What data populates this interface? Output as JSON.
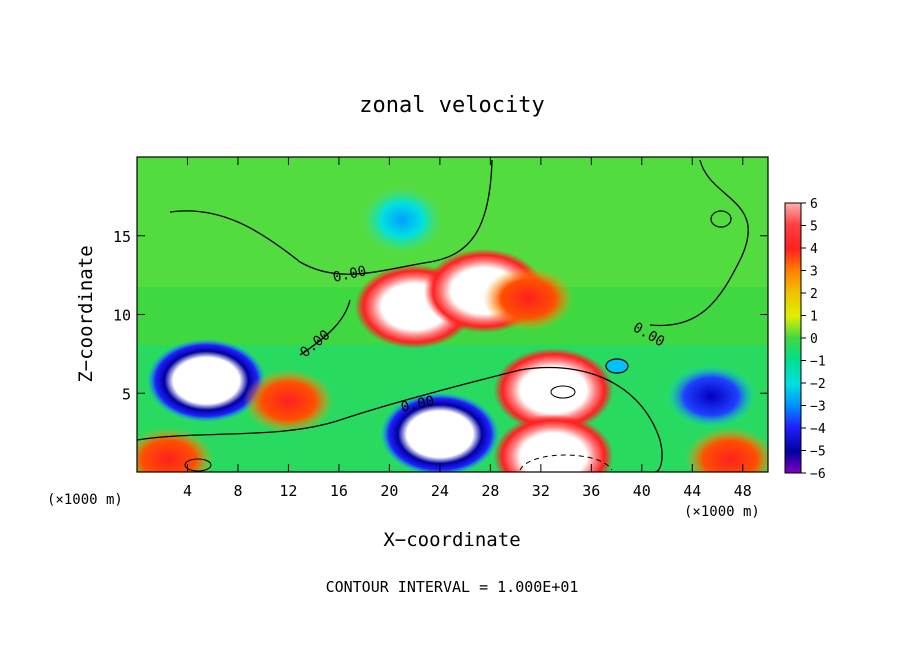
{
  "chart_data": {
    "type": "heatmap",
    "title": "zonal velocity",
    "xlabel": "X−coordinate",
    "ylabel": "Z−coordinate",
    "x_units": "(×1000 m)",
    "z_units": "(×1000 m)",
    "xlim": [
      0,
      50
    ],
    "ylim": [
      0,
      20
    ],
    "x_ticks": [
      4,
      8,
      12,
      16,
      20,
      24,
      28,
      32,
      36,
      40,
      44,
      48
    ],
    "y_ticks": [
      5,
      10,
      15
    ],
    "colorbar": {
      "ticks": [
        6,
        5,
        4,
        3,
        2,
        1,
        0,
        -1,
        -2,
        -3,
        -4,
        -5,
        -6
      ],
      "tick_labels": [
        "6",
        "5",
        "4",
        "3",
        "2",
        "1",
        "0",
        "−1",
        "−2",
        "−3",
        "−4",
        "−5",
        "−6"
      ],
      "range": [
        -6,
        6
      ]
    },
    "contour_labels": [
      "0.00",
      "0.00",
      "0.00",
      "0.00"
    ],
    "footnote": "CONTOUR INTERVAL = 1.000E+01",
    "colors": {
      "background_field": "#40d840",
      "strong_positive": "#ffffff",
      "positive": "#ff2a2a",
      "negative": "#1a1aff",
      "weak_negative": "#00d8ff",
      "contour": "#000000"
    },
    "features": [
      {
        "kind": "positive",
        "x": 22,
        "z": 10.5,
        "value": 6.5
      },
      {
        "kind": "positive",
        "x": 27.5,
        "z": 11.5,
        "value": 6.5
      },
      {
        "kind": "positive",
        "x": 33,
        "z": 5.2,
        "value": 6.5
      },
      {
        "kind": "positive",
        "x": 31,
        "z": 11,
        "value": 4
      },
      {
        "kind": "negative",
        "x": 5.5,
        "z": 5.8,
        "value": -6.5
      },
      {
        "kind": "negative",
        "x": 24,
        "z": 2.4,
        "value": -6
      },
      {
        "kind": "negative",
        "x": 45.5,
        "z": 4.8,
        "value": -4
      },
      {
        "kind": "weak_negative",
        "x": 21,
        "z": 16,
        "value": -2.5
      },
      {
        "kind": "positive",
        "x": 33,
        "z": 1,
        "value": 6.5
      },
      {
        "kind": "positive",
        "x": 12,
        "z": 4.5,
        "value": 5
      },
      {
        "kind": "positive",
        "x": 2.5,
        "z": 0.8,
        "value": 5
      },
      {
        "kind": "positive",
        "x": 47,
        "z": 0.8,
        "value": 4
      }
    ]
  }
}
